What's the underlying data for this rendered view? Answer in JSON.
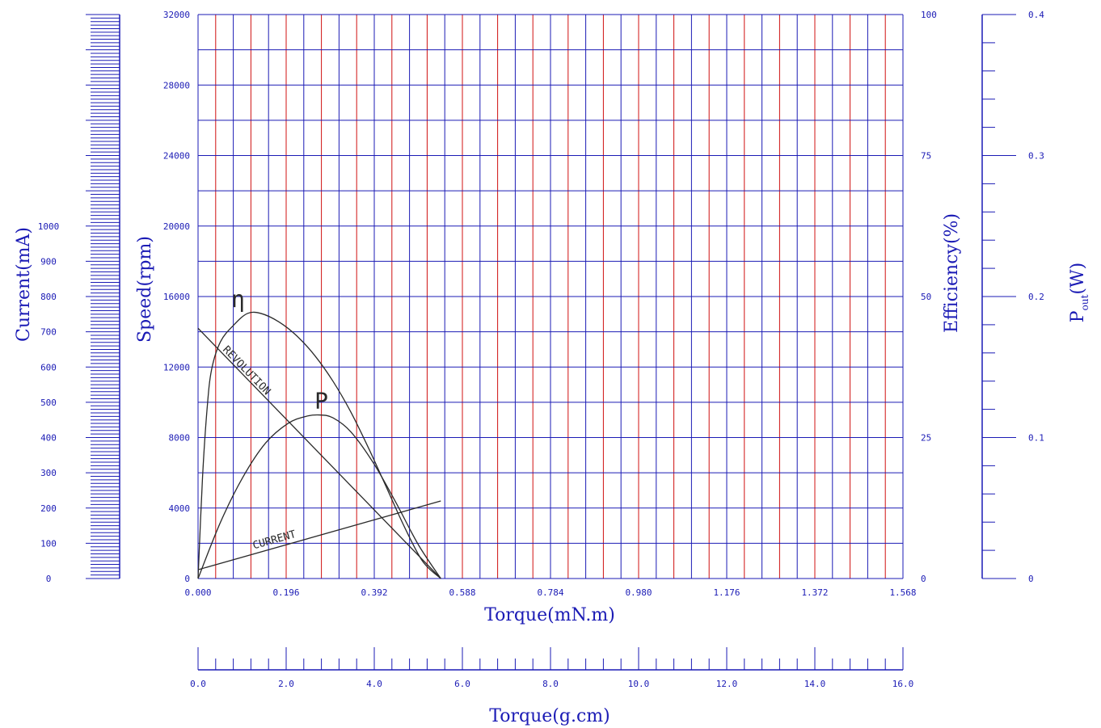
{
  "colors": {
    "axis": "#1b1bb5",
    "grid_major": "#d01010",
    "grid_minor": "#1b1bb5",
    "curve": "#2a2a2a"
  },
  "chart_data": {
    "type": "line",
    "x_axis": {
      "label": "Torque(mN.m)",
      "range": [
        0,
        1.568
      ],
      "ticks": [
        "0.000",
        "0.196",
        "0.392",
        "0.588",
        "0.784",
        "0.980",
        "1.176",
        "1.372",
        "1.568"
      ]
    },
    "x2_axis": {
      "label": "Torque(g.cm)",
      "range": [
        0,
        16
      ],
      "ticks": [
        "0.0",
        "2.0",
        "4.0",
        "6.0",
        "8.0",
        "10.0",
        "12.0",
        "14.0",
        "16.0"
      ]
    },
    "y_speed": {
      "label": "Speed(rpm)",
      "range": [
        0,
        32000
      ],
      "ticks": [
        "0",
        "4000",
        "8000",
        "12000",
        "16000",
        "20000",
        "24000",
        "28000",
        "32000"
      ]
    },
    "y_current": {
      "label": "Current(mA)",
      "range": [
        0,
        1600
      ],
      "ticks": [
        "0",
        "100",
        "200",
        "300",
        "400",
        "500",
        "600",
        "700",
        "800",
        "900",
        "1000"
      ]
    },
    "y_efficiency": {
      "label": "Efficiency(%)",
      "range": [
        0,
        100
      ],
      "ticks": [
        "0",
        "25",
        "50",
        "75",
        "100"
      ]
    },
    "y_pout": {
      "label_main": "P",
      "label_sub": "out",
      "label_tail": "(W)",
      "range": [
        0,
        0.4
      ],
      "ticks": [
        "0",
        "0.1",
        "0.2",
        "0.3",
        "0.4"
      ]
    },
    "grid": true,
    "series": [
      {
        "name": "REVOLUTION",
        "axis": "speed",
        "x": [
          0.0,
          0.54
        ],
        "y": [
          14200,
          0
        ]
      },
      {
        "name": "CURRENT",
        "axis": "current",
        "x": [
          0.0,
          0.54
        ],
        "y": [
          25,
          220
        ]
      },
      {
        "name": "η",
        "axis": "efficiency",
        "x": [
          0.0,
          0.01,
          0.02,
          0.03,
          0.05,
          0.08,
          0.11,
          0.14,
          0.18,
          0.22,
          0.26,
          0.3,
          0.34,
          0.38,
          0.42,
          0.46,
          0.5,
          0.54
        ],
        "y": [
          0,
          18,
          30,
          37,
          42,
          45,
          47,
          47,
          45.5,
          43,
          39.5,
          35,
          29.5,
          23,
          16,
          9,
          3,
          0
        ]
      },
      {
        "name": "P",
        "axis": "pout",
        "x": [
          0.0,
          0.05,
          0.1,
          0.15,
          0.2,
          0.24,
          0.27,
          0.3,
          0.34,
          0.39,
          0.44,
          0.49,
          0.54
        ],
        "y": [
          0,
          0.04,
          0.072,
          0.096,
          0.11,
          0.115,
          0.116,
          0.114,
          0.104,
          0.082,
          0.054,
          0.024,
          0
        ]
      }
    ],
    "annotations": [
      {
        "text": "REVOLUTION",
        "series": "REVOLUTION"
      },
      {
        "text": "CURRENT",
        "series": "CURRENT"
      },
      {
        "text": "η",
        "series": "η"
      },
      {
        "text": "P",
        "series": "P"
      }
    ]
  }
}
